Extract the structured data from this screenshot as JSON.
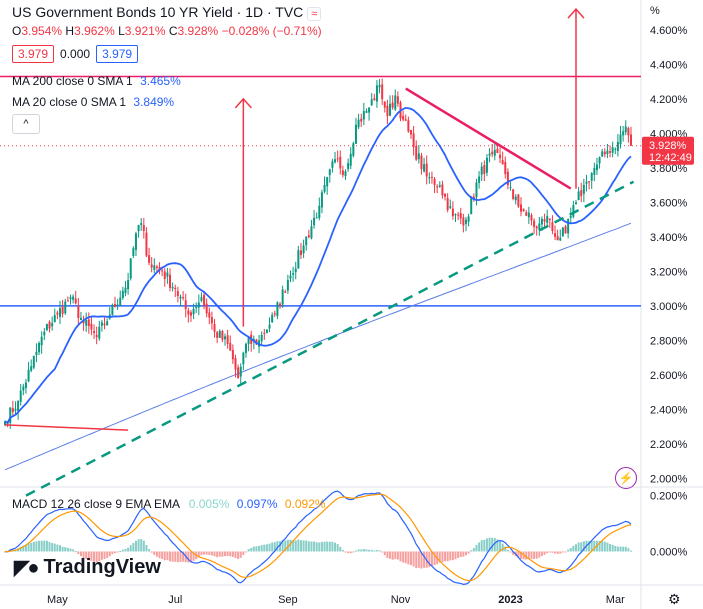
{
  "header": {
    "title": "US Government Bonds 10 YR Yield · 1D · TVC",
    "ohlc": {
      "o_label": "O",
      "o": "3.954%",
      "h_label": "H",
      "h": "3.962%",
      "l_label": "L",
      "l": "3.921%",
      "c_label": "C",
      "c": "3.928%",
      "chg": "−0.028% (−0.71%)"
    },
    "price_box_left": "3.979",
    "spread": "0.000",
    "price_box_right": "3.979",
    "ma200_label": "MA 200 close 0 SMA 1",
    "ma200_value": "3.465%",
    "ma20_label": "MA 20 close 0 SMA 1",
    "ma20_value": "3.849%",
    "collapse_glyph": "^",
    "badge_glyph": "≈"
  },
  "macd_header": {
    "label": "MACD 12 26 close 9 EMA EMA",
    "hist": "0.005%",
    "macd": "0.097%",
    "signal": "0.092%"
  },
  "last_price": {
    "value": "3.928%",
    "countdown": "12:42:49"
  },
  "colors": {
    "up": "#089981",
    "down": "#f23645",
    "ma20": "#2962ff",
    "ma200": "#5b7fe8",
    "hline_pink": "#e91e63",
    "hline_blue": "#2962ff",
    "trend_green": "#089981",
    "macd_line": "#2962ff",
    "signal_line": "#ff9800",
    "accent": "#f23645"
  },
  "logo_text": "TradingView",
  "icons": [
    "gear-icon",
    "bolt-icon",
    "tradingview-logo-icon",
    "chevron-up-icon"
  ],
  "chart_data": {
    "type": "candlestick",
    "ylabel_unit": "%",
    "ylim": [
      1.95,
      4.75
    ],
    "y_ticks": [
      2.0,
      2.2,
      2.4,
      2.6,
      2.8,
      3.0,
      3.2,
      3.4,
      3.6,
      3.8,
      4.0,
      4.2,
      4.4,
      4.6
    ],
    "y_tick_labels": [
      "2.000%",
      "2.200%",
      "2.400%",
      "2.600%",
      "2.800%",
      "3.000%",
      "3.200%",
      "3.400%",
      "3.600%",
      "3.800%",
      "4.000%",
      "4.200%",
      "4.400%",
      "4.600%"
    ],
    "x_tick_labels": [
      {
        "label": "May",
        "i": 20
      },
      {
        "label": "Jul",
        "i": 65
      },
      {
        "label": "Sep",
        "i": 108
      },
      {
        "label": "Nov",
        "i": 151
      },
      {
        "label": "2023",
        "i": 193
      },
      {
        "label": "Mar",
        "i": 233
      }
    ],
    "n_bars": 240,
    "close_anchors": [
      [
        0,
        2.33
      ],
      [
        5,
        2.45
      ],
      [
        10,
        2.65
      ],
      [
        15,
        2.85
      ],
      [
        20,
        2.95
      ],
      [
        25,
        3.05
      ],
      [
        30,
        2.9
      ],
      [
        35,
        2.82
      ],
      [
        40,
        2.95
      ],
      [
        47,
        3.15
      ],
      [
        50,
        3.42
      ],
      [
        52,
        3.48
      ],
      [
        55,
        3.25
      ],
      [
        60,
        3.2
      ],
      [
        65,
        3.1
      ],
      [
        70,
        2.95
      ],
      [
        75,
        3.05
      ],
      [
        80,
        2.85
      ],
      [
        85,
        2.78
      ],
      [
        89,
        2.58
      ],
      [
        92,
        2.78
      ],
      [
        97,
        2.8
      ],
      [
        103,
        2.95
      ],
      [
        108,
        3.15
      ],
      [
        114,
        3.35
      ],
      [
        120,
        3.58
      ],
      [
        126,
        3.85
      ],
      [
        130,
        3.78
      ],
      [
        134,
        4.05
      ],
      [
        139,
        4.15
      ],
      [
        143,
        4.28
      ],
      [
        146,
        4.1
      ],
      [
        149,
        4.22
      ],
      [
        152,
        4.08
      ],
      [
        156,
        3.92
      ],
      [
        161,
        3.75
      ],
      [
        166,
        3.7
      ],
      [
        171,
        3.52
      ],
      [
        176,
        3.5
      ],
      [
        181,
        3.75
      ],
      [
        186,
        3.88
      ],
      [
        190,
        3.82
      ],
      [
        194,
        3.62
      ],
      [
        198,
        3.55
      ],
      [
        203,
        3.45
      ],
      [
        207,
        3.52
      ],
      [
        210,
        3.4
      ],
      [
        214,
        3.42
      ],
      [
        218,
        3.6
      ],
      [
        222,
        3.72
      ],
      [
        226,
        3.82
      ],
      [
        230,
        3.9
      ],
      [
        234,
        3.95
      ],
      [
        237,
        4.04
      ],
      [
        239,
        3.928
      ]
    ],
    "annotations": {
      "hline_pink": 4.33,
      "hline_blue": 3.0,
      "trend_green": {
        "from": [
          8,
          1.9
        ],
        "to": [
          240,
          3.72
        ]
      },
      "falling_line": {
        "from": [
          153,
          4.26
        ],
        "to": [
          216,
          3.68
        ]
      },
      "low_line": {
        "from": [
          0,
          2.31
        ],
        "to": [
          47,
          2.28
        ]
      },
      "arrow_up_1": {
        "i": 91,
        "from": 2.88,
        "to": 4.2
      },
      "arrow_up_2": {
        "i": 218,
        "from": 3.68,
        "to": 4.72
      }
    },
    "macd": {
      "ylim": [
        -0.12,
        0.22
      ],
      "y_ticks": [
        0.2,
        0.0
      ],
      "y_tick_labels": [
        "0.200%",
        "0.000%"
      ]
    }
  }
}
